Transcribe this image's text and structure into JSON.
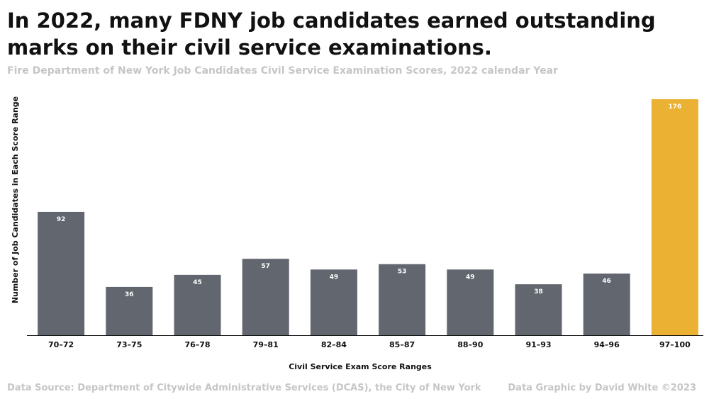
{
  "chart_data": {
    "type": "bar",
    "title": "In 2022, many FDNY job candidates earned outstanding marks on their civil service examinations.",
    "subtitle": "Fire Department of New York Job Candidates Civil Service Examination Scores, 2022 calendar Year",
    "xlabel": "Civil Service Exam Score Ranges",
    "ylabel": "Number of Job Candidates in Each Score Range",
    "categories": [
      "70–72",
      "73–75",
      "76–78",
      "79–81",
      "82–84",
      "85–87",
      "88–90",
      "91–93",
      "94–96",
      "97–100"
    ],
    "values": [
      92,
      36,
      45,
      57,
      49,
      53,
      49,
      38,
      46,
      176
    ],
    "highlight_index": 9,
    "ylim": [
      0,
      176
    ],
    "grid": false,
    "colors": {
      "bar": "#62666f",
      "highlight": "#ebb133",
      "label": "#ffffff",
      "axis_text": "#111111"
    }
  },
  "footer": {
    "source": "Data Source: Department of Citywide Administrative Services (DCAS), the City of New York",
    "credit": "Data Graphic by David White ©2023"
  }
}
